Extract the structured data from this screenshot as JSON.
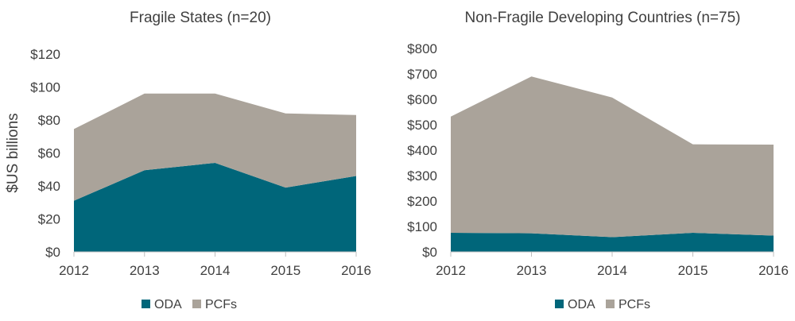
{
  "colors": {
    "oda": "#00667a",
    "pcfs": "#aaa39a",
    "axis": "#bfbfbf",
    "text": "#404040"
  },
  "chart_data": [
    {
      "type": "area",
      "stacked": true,
      "title": "Fragile States (n=20)",
      "ylabel": "$US billions",
      "xlabel": "",
      "x": [
        "2012",
        "2013",
        "2014",
        "2015",
        "2016"
      ],
      "ylim": [
        0,
        120
      ],
      "yticks": [
        0,
        20,
        40,
        60,
        80,
        100,
        120
      ],
      "ytick_labels": [
        "$0",
        "$20",
        "$40",
        "$60",
        "$80",
        "$100",
        "$120"
      ],
      "series": [
        {
          "name": "ODA",
          "values": [
            31,
            49.5,
            54,
            39,
            46
          ]
        },
        {
          "name": "PCFs",
          "values": [
            43.5,
            46.5,
            42,
            45,
            37
          ]
        }
      ],
      "grid": false,
      "legend": "bottom"
    },
    {
      "type": "area",
      "stacked": true,
      "title": "Non-Fragile Developing Countries (n=75)",
      "ylabel": "",
      "xlabel": "",
      "x": [
        "2012",
        "2013",
        "2014",
        "2015",
        "2016"
      ],
      "ylim": [
        0,
        800
      ],
      "yticks": [
        0,
        100,
        200,
        300,
        400,
        500,
        600,
        700,
        800
      ],
      "ytick_labels": [
        "$0",
        "$100",
        "$200",
        "$300",
        "$400",
        "$500",
        "$600",
        "$700",
        "$800"
      ],
      "series": [
        {
          "name": "ODA",
          "values": [
            75,
            73,
            58,
            75,
            64
          ]
        },
        {
          "name": "PCFs",
          "values": [
            457,
            617,
            549,
            348,
            358
          ]
        }
      ],
      "grid": false,
      "legend": "bottom"
    }
  ]
}
